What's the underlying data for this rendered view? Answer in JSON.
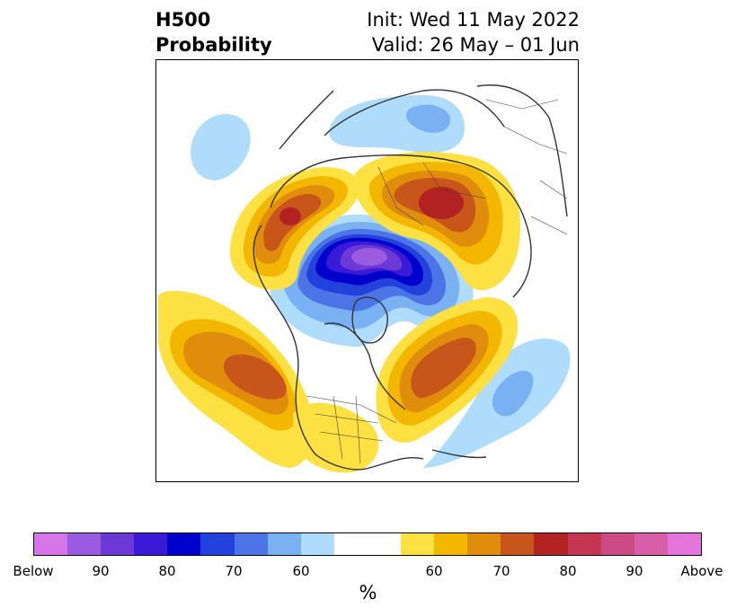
{
  "title": {
    "left_line1": "H500",
    "left_line2": "Probability",
    "right_line1": "Init: Wed 11 May 2022",
    "right_line2": "Valid: 26 May – 01 Jun"
  },
  "colorbar": {
    "colors": [
      "#d675e8",
      "#9a5be0",
      "#6c39d6",
      "#3a1ad6",
      "#0000cc",
      "#2242db",
      "#4d74e6",
      "#79b1f2",
      "#aedcfa",
      "#ffffff",
      "#ffffff",
      "#fde041",
      "#f4b701",
      "#e08d0e",
      "#c8561a",
      "#b22222",
      "#c43652",
      "#cc4b84",
      "#d95ea9",
      "#e475dd"
    ],
    "tick_labels": [
      "Below",
      "90",
      "80",
      "70",
      "60",
      "60",
      "70",
      "80",
      "90",
      "Above"
    ],
    "unit_label": "%"
  },
  "map": {
    "projection": "north-polar-stereographic",
    "anomaly_regions": [
      {
        "name": "arctic-below-normal",
        "category": "below",
        "peak_percent": 90
      },
      {
        "name": "northeast-pacific-below-normal",
        "category": "below",
        "peak_percent": 60
      },
      {
        "name": "north-atlantic-below-normal",
        "category": "below",
        "peak_percent": 70
      },
      {
        "name": "northern-russia-below-normal",
        "category": "below",
        "peak_percent": 70
      },
      {
        "name": "siberia-above-normal",
        "category": "above",
        "peak_percent": 80
      },
      {
        "name": "alaska-yukon-above-normal",
        "category": "above",
        "peak_percent": 80
      },
      {
        "name": "north-pacific-above-normal",
        "category": "above",
        "peak_percent": 75
      },
      {
        "name": "greenland-atlantic-above-normal",
        "category": "above",
        "peak_percent": 75
      },
      {
        "name": "western-us-above-normal",
        "category": "above",
        "peak_percent": 60
      }
    ]
  }
}
